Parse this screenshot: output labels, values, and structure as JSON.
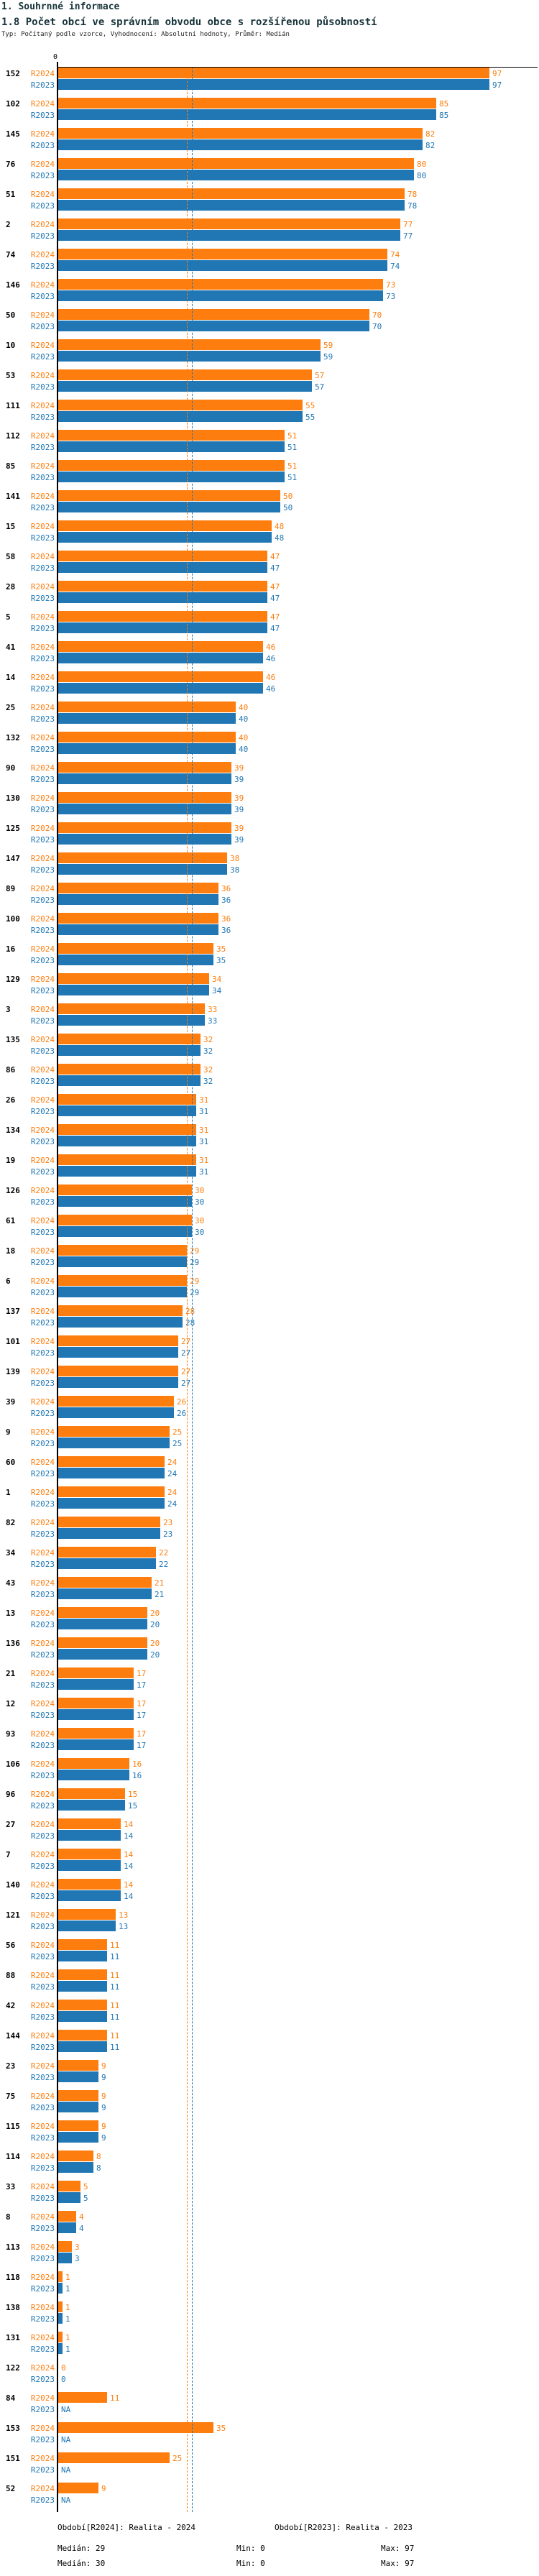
{
  "header": {
    "section_title": "1. Souhrnné informace",
    "chart_title": "1.8 Počet obcí ve správním obvodu obce s rozšířenou působností",
    "meta_line": "Typ: Počítaný podle vzorce, Vyhodnocení: Absolutní hodnoty, Průměr: Medián"
  },
  "axis": {
    "zero_label": "0"
  },
  "colors": {
    "orange": "#fd7e0e",
    "blue": "#2077b4",
    "axis": "#000000"
  },
  "chart_data": {
    "type": "bar",
    "orientation": "horizontal",
    "title": "1.8 Počet obcí ve správním obvodu obce s rozšířenou působností",
    "xlabel": "",
    "ylabel": "",
    "xlim": [
      0,
      97
    ],
    "grid": false,
    "na_label": "NA",
    "categories": [
      "152",
      "102",
      "145",
      "76",
      "51",
      "2",
      "74",
      "146",
      "50",
      "10",
      "53",
      "111",
      "112",
      "85",
      "141",
      "15",
      "58",
      "28",
      "5",
      "41",
      "14",
      "25",
      "132",
      "90",
      "130",
      "125",
      "147",
      "89",
      "100",
      "16",
      "129",
      "3",
      "135",
      "86",
      "26",
      "134",
      "19",
      "126",
      "61",
      "18",
      "6",
      "137",
      "101",
      "139",
      "39",
      "9",
      "60",
      "1",
      "82",
      "34",
      "43",
      "13",
      "136",
      "21",
      "12",
      "93",
      "106",
      "96",
      "27",
      "7",
      "140",
      "121",
      "56",
      "88",
      "42",
      "144",
      "23",
      "75",
      "115",
      "114",
      "33",
      "8",
      "113",
      "118",
      "138",
      "131",
      "122",
      "84",
      "153",
      "151",
      "52"
    ],
    "series": [
      {
        "name": "R2024",
        "color": "#fd7e0e",
        "values": [
          97,
          85,
          82,
          80,
          78,
          77,
          74,
          73,
          70,
          59,
          57,
          55,
          51,
          51,
          50,
          48,
          47,
          47,
          47,
          46,
          46,
          40,
          40,
          39,
          39,
          39,
          38,
          36,
          36,
          35,
          34,
          33,
          32,
          32,
          31,
          31,
          31,
          30,
          30,
          29,
          29,
          28,
          27,
          27,
          26,
          25,
          24,
          24,
          23,
          22,
          21,
          20,
          20,
          17,
          17,
          17,
          16,
          15,
          14,
          14,
          14,
          13,
          11,
          11,
          11,
          11,
          9,
          9,
          9,
          8,
          5,
          4,
          3,
          1,
          1,
          1,
          0,
          11,
          35,
          25,
          9
        ]
      },
      {
        "name": "R2023",
        "color": "#2077b4",
        "values": [
          97,
          85,
          82,
          80,
          78,
          77,
          74,
          73,
          70,
          59,
          57,
          55,
          51,
          51,
          50,
          48,
          47,
          47,
          47,
          46,
          46,
          40,
          40,
          39,
          39,
          39,
          38,
          36,
          36,
          35,
          34,
          33,
          32,
          32,
          31,
          31,
          31,
          30,
          30,
          29,
          29,
          28,
          27,
          27,
          26,
          25,
          24,
          24,
          23,
          22,
          21,
          20,
          20,
          17,
          17,
          17,
          16,
          15,
          14,
          14,
          14,
          13,
          11,
          11,
          11,
          11,
          9,
          9,
          9,
          8,
          5,
          4,
          3,
          1,
          1,
          1,
          0,
          null,
          null,
          null,
          null
        ]
      }
    ],
    "reference_lines": [
      {
        "series": "R2024",
        "label": "Medián",
        "value": 29,
        "color": "#fd7e0e"
      },
      {
        "series": "R2023",
        "label": "Medián",
        "value": 30,
        "color": "#2077b4"
      }
    ],
    "legend_position": "bottom"
  },
  "legend": {
    "r2024": {
      "label": "Období[R2024]: Realita - 2024",
      "median": "Medián: 29",
      "min": "Min: 0",
      "max": "Max: 97"
    },
    "r2023": {
      "label": "Období[R2023]: Realita - 2023",
      "median": "Medián: 30",
      "min": "Min: 0",
      "max": "Max: 97"
    }
  }
}
